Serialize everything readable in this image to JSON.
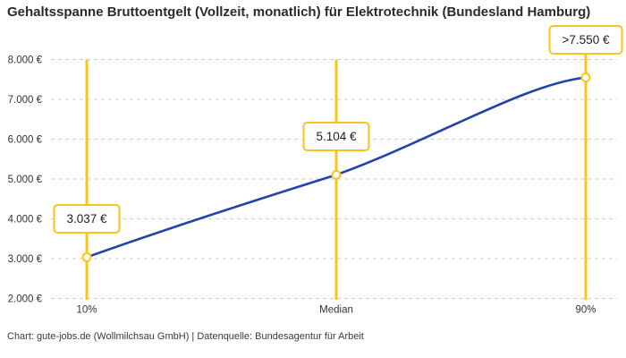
{
  "title": "Gehaltsspanne Bruttoentgelt (Vollzeit, monatlich) für Elektrotechnik (Bundesland Hamburg)",
  "footer": "Chart: gute-jobs.de (Wollmilchsau GmbH) | Datenquelle: Bundesagentur für Arbeit",
  "chart_data": {
    "type": "line",
    "categories": [
      "10%",
      "Median",
      "90%"
    ],
    "values": [
      3037,
      5104,
      7550
    ],
    "point_labels": [
      "3.037 €",
      "5.104 €",
      ">7.550 €"
    ],
    "ylim": [
      2000,
      8000
    ],
    "ytick_interval": 1000,
    "ytick_labels": [
      "2.000 €",
      "3.000 €",
      "4.000 €",
      "5.000 €",
      "6.000 €",
      "7.000 €",
      "8.000 €"
    ],
    "grid": "horizontal-dashed",
    "legend": "none",
    "colors": {
      "line": "#2343A8",
      "percentile_line": "#FAC515",
      "marker_fill": "#FFFFFF",
      "marker_stroke": "#FAC515",
      "label_border": "#FAC515",
      "grid": "#CBCBCB",
      "axis_text": "#333333",
      "title_text": "#2B2B2B"
    }
  }
}
